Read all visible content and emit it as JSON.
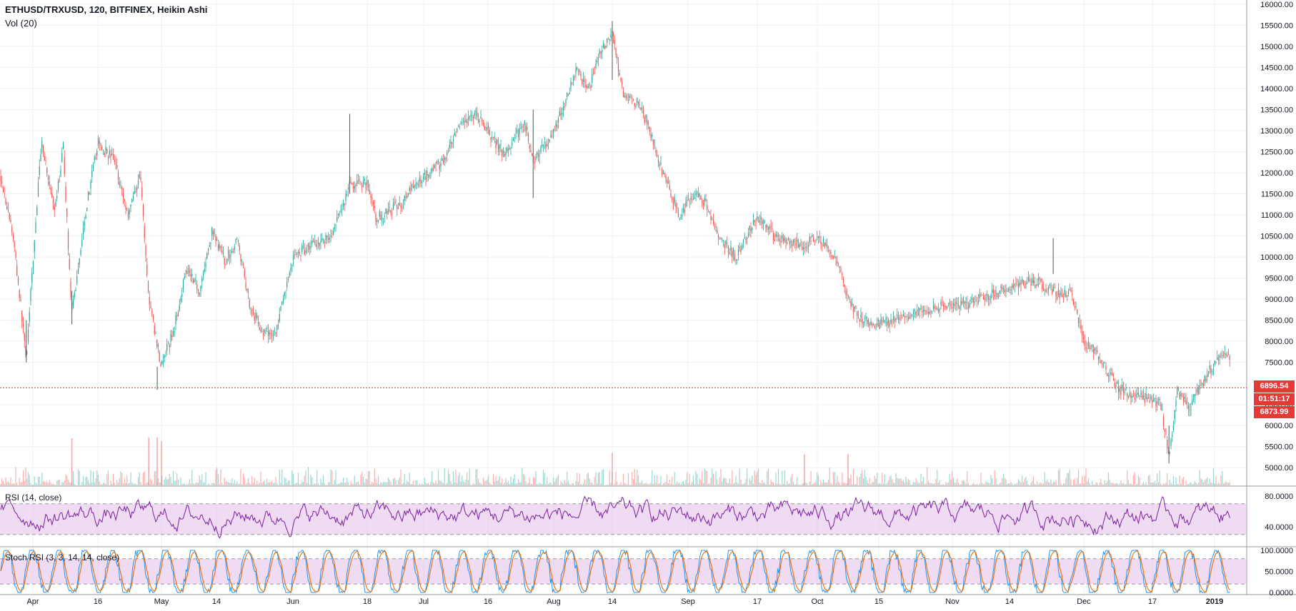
{
  "header": {
    "title": "ETHUSD/TRXUSD, 120, BITFINEX, Heikin Ashi",
    "volume_label": "Vol (20)",
    "rsi_label": "RSI (14, close)",
    "stoch_label": "Stoch RSI (3, 3, 14, 14, close)"
  },
  "price_tags": {
    "last_price": "6896.54",
    "countdown": "01:51:17",
    "secondary_price": "6873.99"
  },
  "colors": {
    "up": "#26a69a",
    "down": "#ef5350",
    "rsi_line": "#7b1fa2",
    "rsi_band": "#e1bee7",
    "stoch_k": "#2196f3",
    "stoch_d": "#ef6c00",
    "price_line": "#e53935"
  },
  "chart_data": [
    {
      "type": "candlestick",
      "title": "ETHUSD/TRXUSD, 120, BITFINEX, Heikin Ashi",
      "x_tick_labels": [
        "Apr",
        "16",
        "May",
        "14",
        "Jun",
        "18",
        "Jul",
        "16",
        "Aug",
        "14",
        "Sep",
        "17",
        "Oct",
        "15",
        "Nov",
        "14",
        "Dec",
        "17",
        "2019"
      ],
      "y_tick_labels": [
        "16000.00",
        "15500.00",
        "15000.00",
        "14500.00",
        "14000.00",
        "13500.00",
        "13000.00",
        "12500.00",
        "12000.00",
        "11500.00",
        "11000.00",
        "10500.00",
        "10000.00",
        "9500.00",
        "9000.00",
        "8500.00",
        "8000.00",
        "7500.00",
        "6896.54",
        "6500.00",
        "6000.00",
        "5500.00",
        "5000.00"
      ],
      "ylim": [
        4750,
        16100
      ],
      "grid": true,
      "last_price": 6896.54,
      "path_points": [
        {
          "x": "Mar 22",
          "y": 12000
        },
        {
          "x": "Mar 26",
          "y": 10500
        },
        {
          "x": "Mar 30",
          "y": 7600
        },
        {
          "x": "Apr 3",
          "y": 12800
        },
        {
          "x": "Apr 6",
          "y": 11000
        },
        {
          "x": "Apr 8",
          "y": 12600
        },
        {
          "x": "Apr 10",
          "y": 8600
        },
        {
          "x": "Apr 13",
          "y": 11000
        },
        {
          "x": "Apr 16",
          "y": 12700
        },
        {
          "x": "Apr 20",
          "y": 12300
        },
        {
          "x": "Apr 23",
          "y": 11000
        },
        {
          "x": "Apr 26",
          "y": 12000
        },
        {
          "x": "Apr 28",
          "y": 9000
        },
        {
          "x": "May 1",
          "y": 7400
        },
        {
          "x": "May 4",
          "y": 8300
        },
        {
          "x": "May 7",
          "y": 9800
        },
        {
          "x": "May 10",
          "y": 9200
        },
        {
          "x": "May 13",
          "y": 10600
        },
        {
          "x": "May 16",
          "y": 9900
        },
        {
          "x": "May 19",
          "y": 10400
        },
        {
          "x": "May 22",
          "y": 8800
        },
        {
          "x": "May 25",
          "y": 8200
        },
        {
          "x": "May 28",
          "y": 8200
        },
        {
          "x": "Jun 1",
          "y": 10000
        },
        {
          "x": "Jun 5",
          "y": 10300
        },
        {
          "x": "Jun 10",
          "y": 10500
        },
        {
          "x": "Jun 14",
          "y": 11700
        },
        {
          "x": "Jun 18",
          "y": 11800
        },
        {
          "x": "Jun 20",
          "y": 10900
        },
        {
          "x": "Jun 26",
          "y": 11300
        },
        {
          "x": "Jun 29",
          "y": 11700
        },
        {
          "x": "Jul 2",
          "y": 12000
        },
        {
          "x": "Jul 6",
          "y": 12300
        },
        {
          "x": "Jul 9",
          "y": 13000
        },
        {
          "x": "Jul 13",
          "y": 13400
        },
        {
          "x": "Jul 16",
          "y": 13000
        },
        {
          "x": "Jul 20",
          "y": 12400
        },
        {
          "x": "Jul 25",
          "y": 13200
        },
        {
          "x": "Jul 27",
          "y": 12300
        },
        {
          "x": "Jul 31",
          "y": 12800
        },
        {
          "x": "Aug 3",
          "y": 13500
        },
        {
          "x": "Aug 6",
          "y": 14400
        },
        {
          "x": "Aug 9",
          "y": 14000
        },
        {
          "x": "Aug 11",
          "y": 14800
        },
        {
          "x": "Aug 14",
          "y": 15300
        },
        {
          "x": "Aug 17",
          "y": 13700
        },
        {
          "x": "Aug 20",
          "y": 13700
        },
        {
          "x": "Aug 23",
          "y": 13000
        },
        {
          "x": "Aug 26",
          "y": 12000
        },
        {
          "x": "Aug 30",
          "y": 11000
        },
        {
          "x": "Sep 2",
          "y": 11500
        },
        {
          "x": "Sep 5",
          "y": 11300
        },
        {
          "x": "Sep 8",
          "y": 10500
        },
        {
          "x": "Sep 12",
          "y": 10000
        },
        {
          "x": "Sep 17",
          "y": 11000
        },
        {
          "x": "Sep 21",
          "y": 10500
        },
        {
          "x": "Sep 25",
          "y": 10300
        },
        {
          "x": "Sep 28",
          "y": 10300
        },
        {
          "x": "Oct 1",
          "y": 10500
        },
        {
          "x": "Oct 5",
          "y": 10000
        },
        {
          "x": "Oct 8",
          "y": 9000
        },
        {
          "x": "Oct 11",
          "y": 8500
        },
        {
          "x": "Oct 15",
          "y": 8400
        },
        {
          "x": "Oct 22",
          "y": 8600
        },
        {
          "x": "Oct 29",
          "y": 8800
        },
        {
          "x": "Nov 5",
          "y": 8900
        },
        {
          "x": "Nov 12",
          "y": 9200
        },
        {
          "x": "Nov 17",
          "y": 9400
        },
        {
          "x": "Nov 21",
          "y": 9400
        },
        {
          "x": "Nov 25",
          "y": 9100
        },
        {
          "x": "Nov 28",
          "y": 9200
        },
        {
          "x": "Dec 1",
          "y": 8000
        },
        {
          "x": "Dec 4",
          "y": 7700
        },
        {
          "x": "Dec 7",
          "y": 7200
        },
        {
          "x": "Dec 9",
          "y": 6900
        },
        {
          "x": "Dec 13",
          "y": 6700
        },
        {
          "x": "Dec 17",
          "y": 6600
        },
        {
          "x": "Dec 19",
          "y": 6500
        },
        {
          "x": "Dec 21",
          "y": 5300
        },
        {
          "x": "Dec 23",
          "y": 6800
        },
        {
          "x": "Dec 26",
          "y": 6400
        },
        {
          "x": "Dec 29",
          "y": 7000
        },
        {
          "x": "Jan 1",
          "y": 7500
        },
        {
          "x": "Jan 3",
          "y": 7800
        },
        {
          "x": "Jan 6",
          "y": 6896.54
        }
      ],
      "notable_wicks": [
        {
          "x": "Mar 30",
          "high": 8500,
          "low": 7500
        },
        {
          "x": "Apr 10",
          "high": 9200,
          "low": 8400
        },
        {
          "x": "Apr 30",
          "high": 7400,
          "low": 6850
        },
        {
          "x": "Jun 14",
          "high": 13400,
          "low": 11500
        },
        {
          "x": "Jul 27",
          "high": 13500,
          "low": 11400
        },
        {
          "x": "Aug 14",
          "high": 15600,
          "low": 14200
        },
        {
          "x": "Nov 24",
          "high": 10450,
          "low": 9600
        },
        {
          "x": "Dec 21",
          "high": 6000,
          "low": 5100
        }
      ]
    },
    {
      "type": "bar",
      "title": "Vol (20)",
      "notable_spikes": [
        {
          "x": "Apr 10",
          "relative_height": 0.55
        },
        {
          "x": "May 1",
          "relative_height": 0.52
        },
        {
          "x": "Apr 30",
          "relative_height": 0.56
        },
        {
          "x": "Apr 28",
          "relative_height": 0.56
        },
        {
          "x": "Aug 14",
          "relative_height": 0.38
        },
        {
          "x": "Sep 28",
          "relative_height": 0.36
        },
        {
          "x": "Oct 8",
          "relative_height": 0.37
        }
      ]
    },
    {
      "type": "line",
      "title": "RSI (14, close)",
      "y_tick_labels": [
        "80.0000",
        "40.0000"
      ],
      "ylim": [
        15,
        92
      ],
      "band": [
        30,
        70
      ],
      "typical_range": [
        30,
        85
      ]
    },
    {
      "type": "line",
      "title": "Stoch RSI (3, 3, 14, 14, close)",
      "y_tick_labels": [
        "100.0000",
        "50.0000",
        "0.0000"
      ],
      "ylim": [
        0,
        100
      ],
      "band": [
        20,
        80
      ],
      "series": [
        {
          "name": "K"
        },
        {
          "name": "D"
        }
      ]
    }
  ]
}
